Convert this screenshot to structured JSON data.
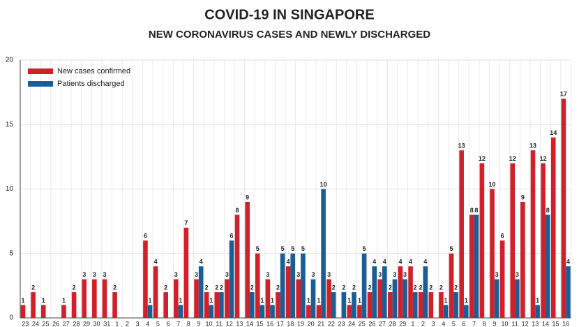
{
  "chart_data": {
    "type": "bar",
    "title": "COVID-19 IN SINGAPORE",
    "subtitle": "NEW CORONAVIRUS CASES AND NEWLY DISCHARGED",
    "categories": [
      "23",
      "24",
      "25",
      "26",
      "27",
      "28",
      "29",
      "30",
      "31",
      "1",
      "2",
      "3",
      "4",
      "5",
      "6",
      "7",
      "8",
      "9",
      "10",
      "11",
      "12",
      "13",
      "14",
      "15",
      "16",
      "17",
      "18",
      "19",
      "20",
      "21",
      "22",
      "23",
      "24",
      "25",
      "26",
      "27",
      "28",
      "29",
      "1",
      "2",
      "3",
      "4",
      "5",
      "6",
      "7",
      "8",
      "9",
      "10",
      "11",
      "12",
      "13",
      "14",
      "15",
      "16"
    ],
    "series": [
      {
        "name": "New cases confirmed",
        "color": "#d2202a",
        "values": [
          1,
          2,
          1,
          0,
          1,
          2,
          3,
          3,
          3,
          2,
          0,
          0,
          6,
          4,
          2,
          3,
          7,
          3,
          2,
          2,
          3,
          8,
          9,
          5,
          3,
          2,
          4,
          3,
          1,
          1,
          3,
          0,
          1,
          1,
          2,
          3,
          2,
          4,
          4,
          2,
          2,
          2,
          5,
          13,
          8,
          12,
          10,
          6,
          12,
          9,
          13,
          12,
          14,
          17
        ]
      },
      {
        "name": "Patients discharged",
        "color": "#1b5e96",
        "values": [
          0,
          0,
          0,
          0,
          0,
          0,
          0,
          0,
          0,
          0,
          0,
          0,
          1,
          0,
          0,
          1,
          0,
          4,
          1,
          2,
          6,
          0,
          2,
          1,
          1,
          5,
          5,
          5,
          3,
          10,
          2,
          2,
          2,
          5,
          4,
          4,
          3,
          3,
          2,
          4,
          0,
          1,
          2,
          1,
          8,
          0,
          3,
          0,
          3,
          0,
          1,
          8,
          0,
          4
        ]
      }
    ],
    "ylim": [
      0,
      20
    ],
    "yticks": [
      0,
      5,
      10,
      15,
      20
    ],
    "grid": true,
    "legend": "top-left"
  }
}
